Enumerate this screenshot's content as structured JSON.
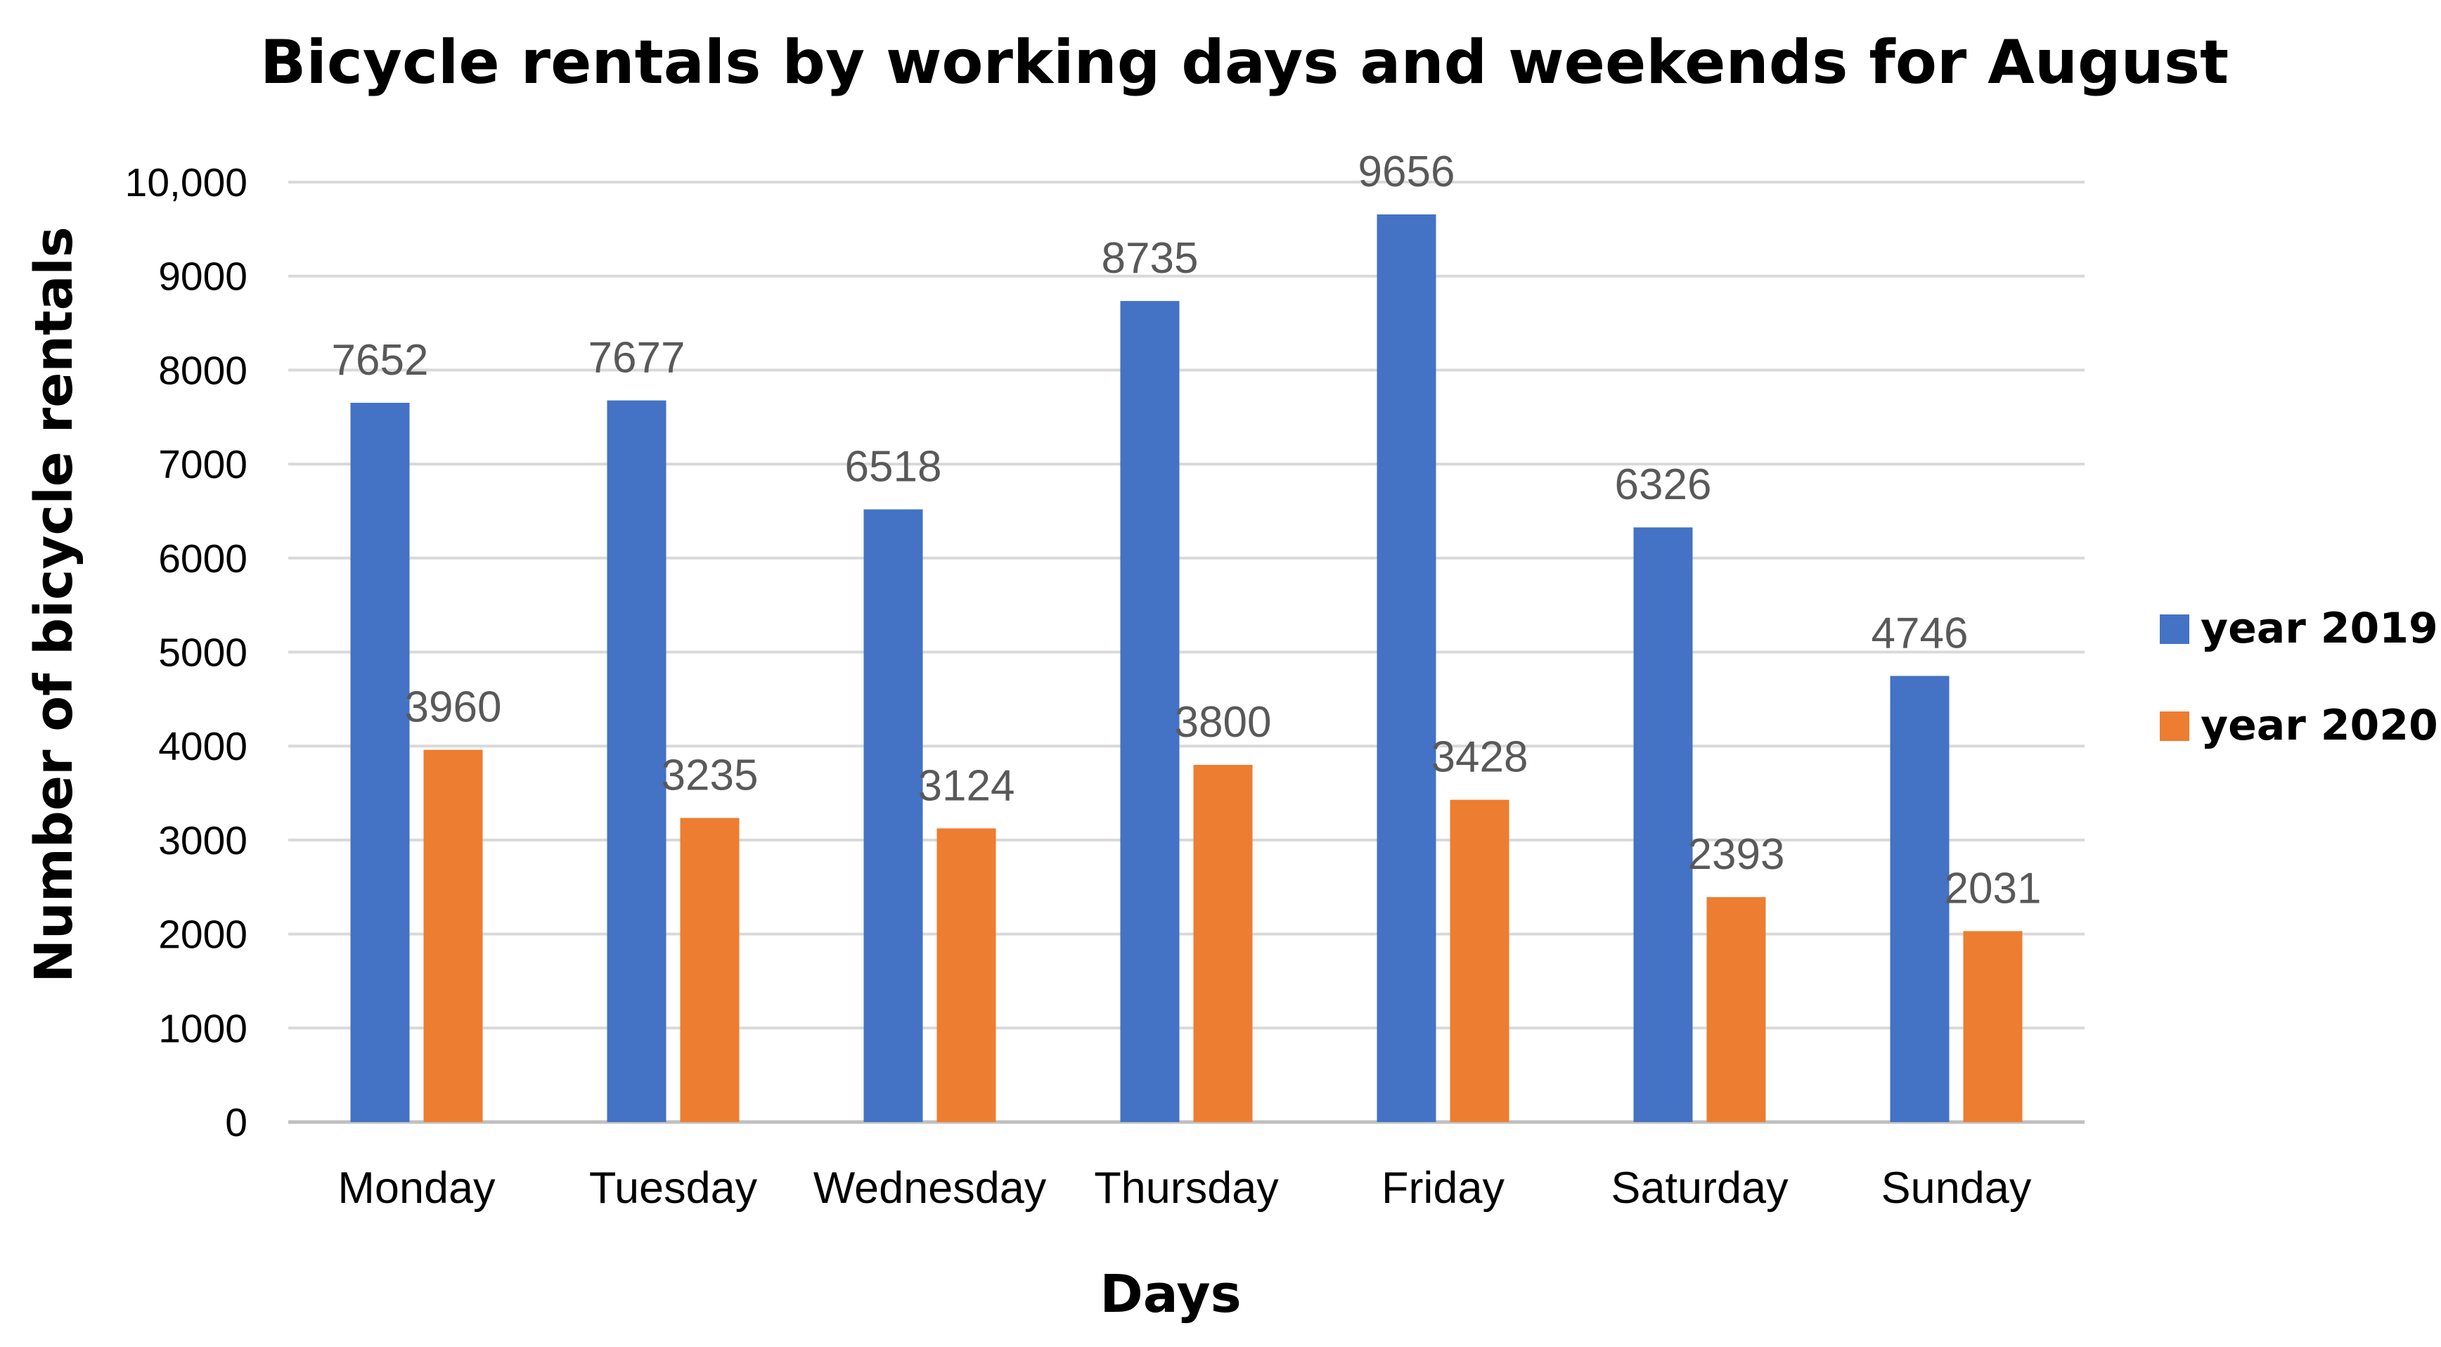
{
  "chart_data": {
    "type": "bar",
    "title": "Bicycle rentals by working days and weekends for August",
    "xlabel": "Days",
    "ylabel": "Number of bicycle rentals",
    "categories": [
      "Monday",
      "Tuesday",
      "Wednesday",
      "Thursday",
      "Friday",
      "Saturday",
      "Sunday"
    ],
    "series": [
      {
        "name": "year 2019",
        "color": "#4472C4",
        "values": [
          7652,
          7677,
          6518,
          8735,
          9656,
          6326,
          4746
        ],
        "labels": [
          "7652",
          "7677",
          "6518",
          "8735",
          "9656",
          "6326",
          "4746"
        ]
      },
      {
        "name": "year 2020",
        "color": "#ED7D31",
        "values": [
          3960,
          3235,
          3124,
          3800,
          3428,
          2393,
          2031
        ],
        "labels": [
          "3960",
          "3235",
          "3124",
          "3800",
          "3428",
          "2393",
          "2031"
        ]
      }
    ],
    "ylim": [
      0,
      10000
    ],
    "yticks": [
      0,
      1000,
      2000,
      3000,
      4000,
      5000,
      6000,
      7000,
      8000,
      9000,
      10000
    ],
    "ytick_labels": [
      "0",
      "1000",
      "2000",
      "3000",
      "4000",
      "5000",
      "6000",
      "7000",
      "8000",
      "9000",
      "10,000"
    ],
    "grid": true,
    "gridline_color": "#D9D9D9",
    "legend_position": "right"
  }
}
